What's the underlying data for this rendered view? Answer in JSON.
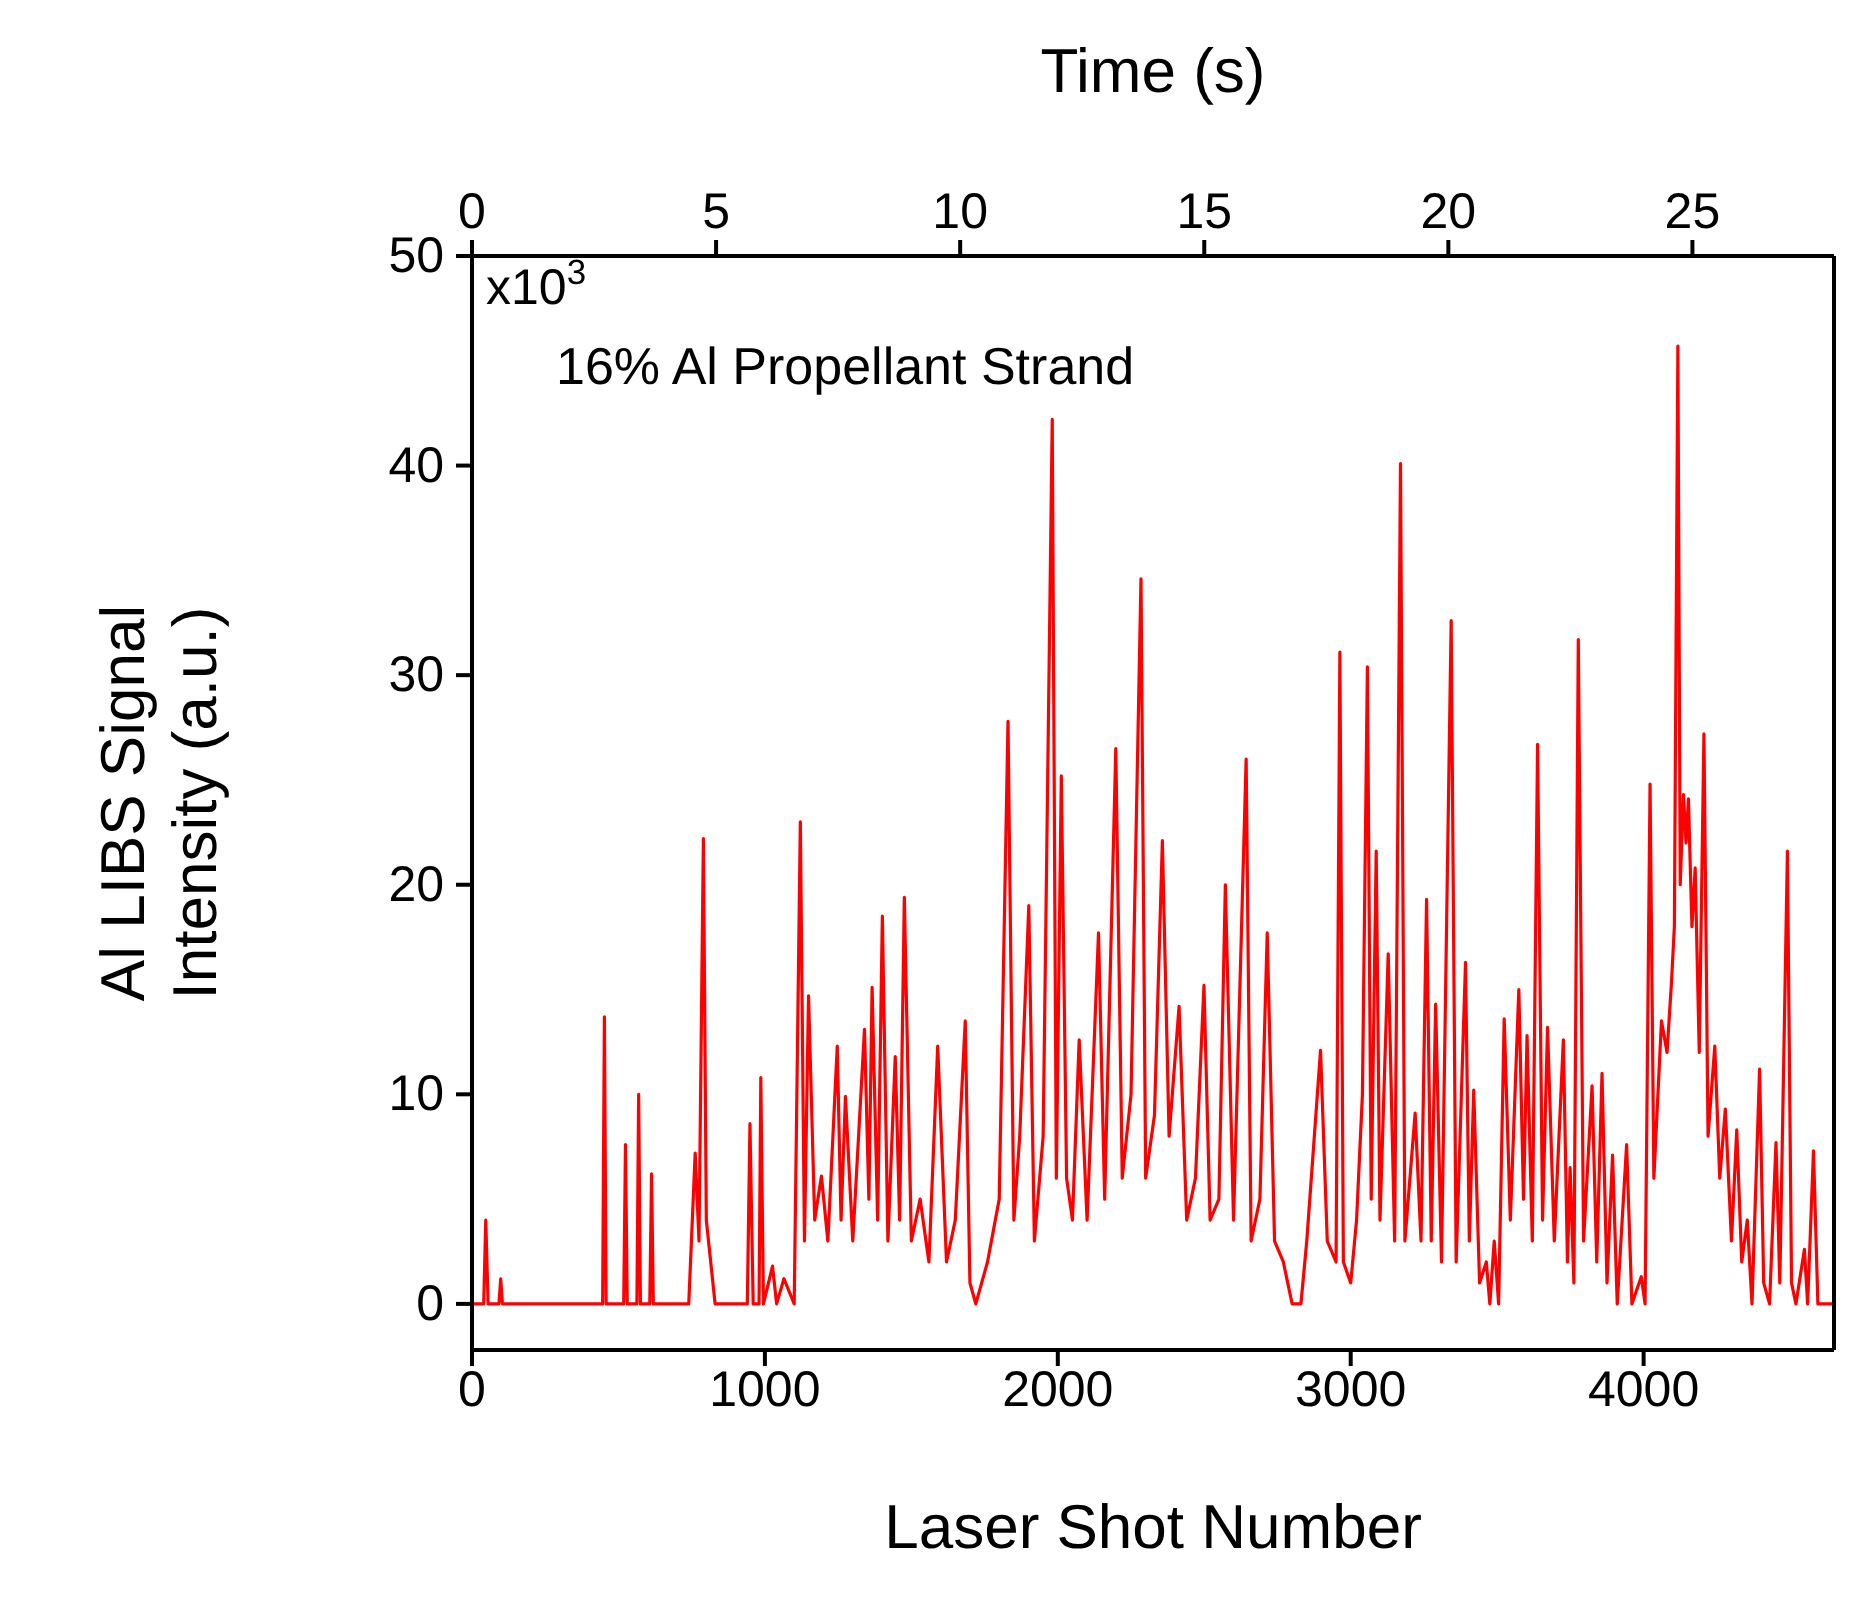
{
  "chart_data": {
    "type": "line",
    "xlabel": "Laser Shot Number",
    "x2label": "Time (s)",
    "ylabel": "Al LIBS Signal\nIntensity (a.u.)",
    "annotations": [
      "16% Al Propellant Strand",
      "x10$^{3}$"
    ],
    "xlim": [
      0,
      4650
    ],
    "xticks": [
      0,
      1000,
      2000,
      3000,
      4000
    ],
    "x2lim": [
      0,
      27.9
    ],
    "x2ticks": [
      0,
      5,
      10,
      15,
      20,
      25
    ],
    "ylim": [
      -2.2,
      50
    ],
    "yticks": [
      0,
      10,
      20,
      30,
      40,
      50
    ],
    "marker": "none",
    "line_style": "solid",
    "series": [
      {
        "color": "#ff0000",
        "x": [
          0,
          40,
          47,
          55,
          92,
          98,
          104,
          446,
          452,
          458,
          518,
          524,
          530,
          563,
          569,
          575,
          607,
          613,
          619,
          740,
          762,
          775,
          790,
          800,
          809,
          830,
          940,
          949,
          960,
          980,
          986,
          995,
          1026,
          1040,
          1065,
          1100,
          1121,
          1135,
          1149,
          1170,
          1193,
          1215,
          1247,
          1260,
          1275,
          1300,
          1340,
          1355,
          1366,
          1385,
          1401,
          1420,
          1445,
          1460,
          1476,
          1500,
          1530,
          1560,
          1590,
          1620,
          1650,
          1684,
          1700,
          1720,
          1760,
          1800,
          1830,
          1850,
          1870,
          1901,
          1920,
          1950,
          1981,
          1995,
          2012,
          2030,
          2050,
          2073,
          2100,
          2139,
          2160,
          2198,
          2220,
          2250,
          2284,
          2300,
          2330,
          2357,
          2380,
          2414,
          2440,
          2470,
          2499,
          2520,
          2550,
          2572,
          2600,
          2643,
          2660,
          2690,
          2715,
          2740,
          2770,
          2800,
          2830,
          2850,
          2897,
          2920,
          2950,
          2963,
          2975,
          3000,
          3020,
          3040,
          3057,
          3070,
          3087,
          3100,
          3128,
          3150,
          3170,
          3185,
          3220,
          3240,
          3259,
          3275,
          3290,
          3310,
          3343,
          3360,
          3392,
          3405,
          3420,
          3440,
          3463,
          3475,
          3490,
          3505,
          3524,
          3545,
          3574,
          3590,
          3602,
          3620,
          3638,
          3655,
          3672,
          3695,
          3726,
          3740,
          3749,
          3762,
          3777,
          3795,
          3824,
          3840,
          3858,
          3875,
          3894,
          3910,
          3942,
          3960,
          3992,
          4005,
          4022,
          4035,
          4061,
          4080,
          4095,
          4105,
          4117,
          4125,
          4136,
          4145,
          4153,
          4165,
          4176,
          4190,
          4206,
          4220,
          4243,
          4260,
          4279,
          4300,
          4318,
          4335,
          4354,
          4370,
          4396,
          4410,
          4430,
          4452,
          4465,
          4491,
          4505,
          4520,
          4549,
          4560,
          4580,
          4595,
          4650
        ],
        "values": [
          0,
          0,
          4,
          0,
          0,
          1.2,
          0,
          0,
          13.7,
          0,
          0,
          7.6,
          0,
          0,
          10,
          0,
          0,
          6.2,
          0,
          0,
          7.2,
          3,
          22.2,
          4,
          2.8,
          0,
          0,
          8.6,
          0,
          0,
          10.8,
          0,
          1.8,
          0,
          1.2,
          0,
          23,
          3,
          14.7,
          4,
          6.1,
          3,
          12.3,
          4,
          9.9,
          3,
          13.1,
          5,
          15.1,
          4,
          18.5,
          3,
          11.8,
          4,
          19.4,
          3,
          5,
          2,
          12.3,
          2,
          4,
          13.5,
          1,
          0,
          2,
          5,
          27.8,
          4,
          8,
          19,
          3,
          8,
          42.2,
          6,
          25.2,
          6,
          4,
          12.6,
          4,
          17.7,
          5,
          26.5,
          6,
          10,
          34.6,
          6,
          9,
          22.1,
          8,
          14.2,
          4,
          6,
          15.2,
          4,
          5,
          20,
          4,
          26,
          3,
          5,
          17.7,
          3,
          2,
          0,
          0,
          3,
          12.1,
          3,
          2,
          31.1,
          2,
          1,
          4,
          10,
          30.4,
          5,
          21.6,
          4,
          16.7,
          3,
          40.1,
          3,
          9.1,
          3,
          19.3,
          3,
          14.3,
          2,
          32.6,
          2,
          16.3,
          3,
          10.2,
          1,
          2,
          0,
          3,
          0,
          13.6,
          4,
          15,
          5,
          12.8,
          3,
          26.7,
          4,
          13.2,
          3,
          12.6,
          2,
          6.5,
          1,
          31.7,
          3,
          10.4,
          2,
          11,
          1,
          7.1,
          0,
          7.6,
          0,
          1.3,
          0,
          24.8,
          6,
          13.5,
          12,
          15.3,
          18,
          45.7,
          20,
          24.3,
          22,
          24.1,
          18,
          20.8,
          12,
          27.2,
          8,
          12.3,
          6,
          9.3,
          3,
          8.3,
          2,
          4,
          0,
          11.2,
          1,
          0,
          7.7,
          1,
          21.6,
          1,
          0,
          2.6,
          0,
          7.3,
          0,
          0
        ]
      }
    ]
  }
}
